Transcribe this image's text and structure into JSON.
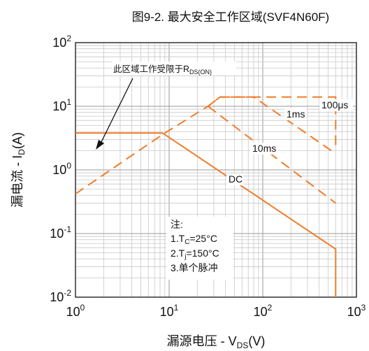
{
  "chart_data": {
    "type": "line",
    "title": "图9-2. 最大安全工作区域(SVF4N60F)",
    "xlabel": {
      "main": "漏源电压 - V",
      "sub": "DS",
      "tail": "(V)"
    },
    "ylabel": {
      "main": "漏电流 - I",
      "sub": "D",
      "tail": "(A)"
    },
    "x_scale": "log",
    "y_scale": "log",
    "xlim": [
      1,
      1000
    ],
    "ylim": [
      0.01,
      100
    ],
    "grid": true,
    "x_ticks": [
      {
        "base": "10",
        "exp": "0"
      },
      {
        "base": "10",
        "exp": "1"
      },
      {
        "base": "10",
        "exp": "2"
      },
      {
        "base": "10",
        "exp": "3"
      }
    ],
    "y_ticks": [
      {
        "base": "10",
        "exp": "-2"
      },
      {
        "base": "10",
        "exp": "-1"
      },
      {
        "base": "10",
        "exp": "0"
      },
      {
        "base": "10",
        "exp": "1"
      },
      {
        "base": "10",
        "exp": "2"
      }
    ],
    "series": [
      {
        "name": "100μs",
        "style": "dashed",
        "points": [
          [
            26,
            10
          ],
          [
            35,
            14
          ],
          [
            600,
            14
          ],
          [
            600,
            2
          ]
        ]
      },
      {
        "name": "1ms",
        "style": "dashed",
        "points": [
          [
            1,
            0.42
          ],
          [
            8.5,
            3.6
          ],
          [
            26,
            10
          ],
          [
            35,
            14
          ],
          [
            80,
            14
          ],
          [
            600,
            1.8
          ]
        ]
      },
      {
        "name": "10ms",
        "style": "dashed",
        "points": [
          [
            26,
            10
          ],
          [
            600,
            0.3
          ]
        ]
      },
      {
        "name": "DC",
        "style": "solid",
        "points": [
          [
            1,
            3.8
          ],
          [
            8.5,
            3.8
          ],
          [
            600,
            0.057
          ],
          [
            600,
            0.01
          ]
        ]
      }
    ],
    "line_color": "#f07c28",
    "annotations": {
      "rds": {
        "text": "此区域工作受限于R",
        "sub": "DS(ON)"
      },
      "notes_title": "注:",
      "note1": {
        "pre": "1.T",
        "sub": "C",
        "post": "=25°C"
      },
      "note2": {
        "pre": "2.T",
        "sub": "j",
        "post": "=150°C"
      },
      "note3": "3.单个脉冲"
    }
  }
}
